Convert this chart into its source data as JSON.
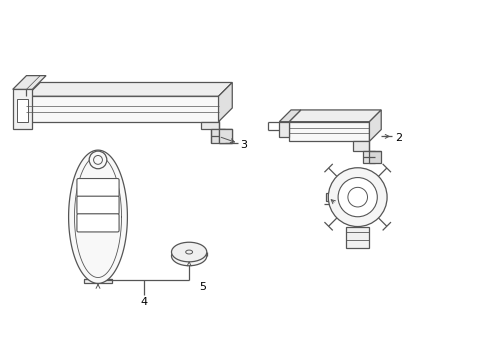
{
  "background_color": "#ffffff",
  "line_color": "#555555",
  "label_color": "#000000",
  "figure_width": 4.9,
  "figure_height": 3.6,
  "dpi": 100
}
